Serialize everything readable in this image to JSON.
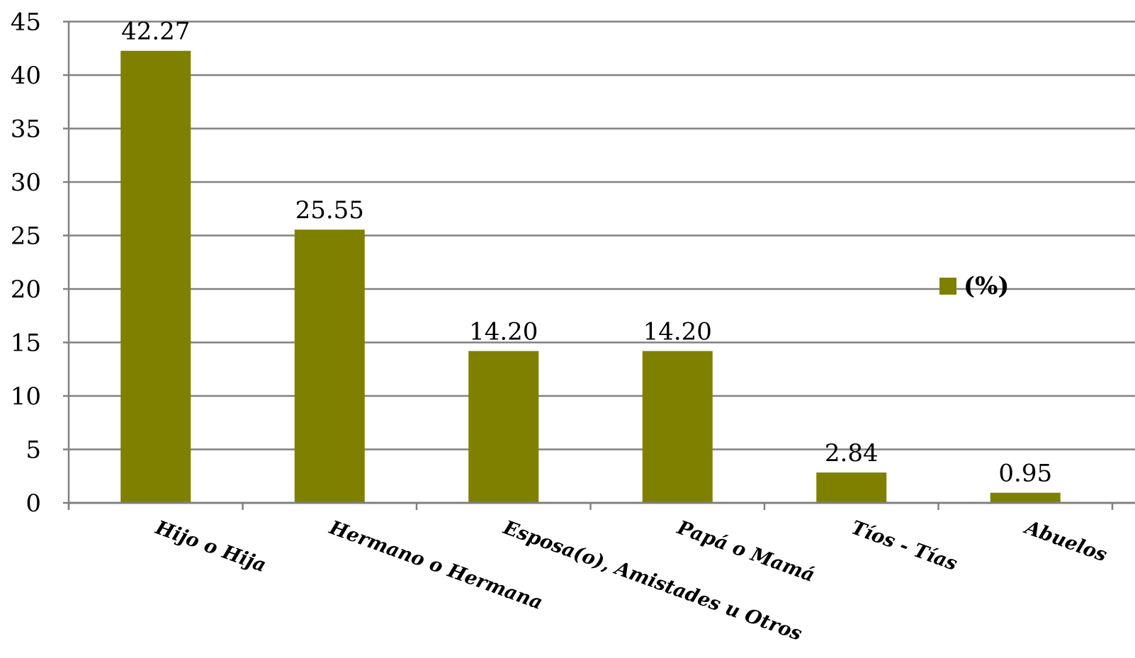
{
  "chart_data": {
    "type": "bar",
    "categories": [
      "Hijo o Hija",
      "Hermano o Hermana",
      "Esposa(o), Amistades u Otros",
      "Papá o Mamá",
      "Tíos - Tías",
      "Abuelos"
    ],
    "series": [
      {
        "name": "(%)",
        "values": [
          42.27,
          25.55,
          14.2,
          14.2,
          2.84,
          0.95
        ]
      }
    ],
    "data_labels": [
      "42.27",
      "25.55",
      "14.20",
      "14.20",
      "2.84",
      "0.95"
    ],
    "y_ticks": [
      "0",
      "5",
      "10",
      "15",
      "20",
      "25",
      "30",
      "35",
      "40",
      "45"
    ],
    "ylim": [
      0,
      45
    ],
    "grid": true,
    "legend_position": "right",
    "bar_color": "#808000",
    "grid_color": "#808080",
    "title": "",
    "xlabel": "",
    "ylabel": ""
  }
}
